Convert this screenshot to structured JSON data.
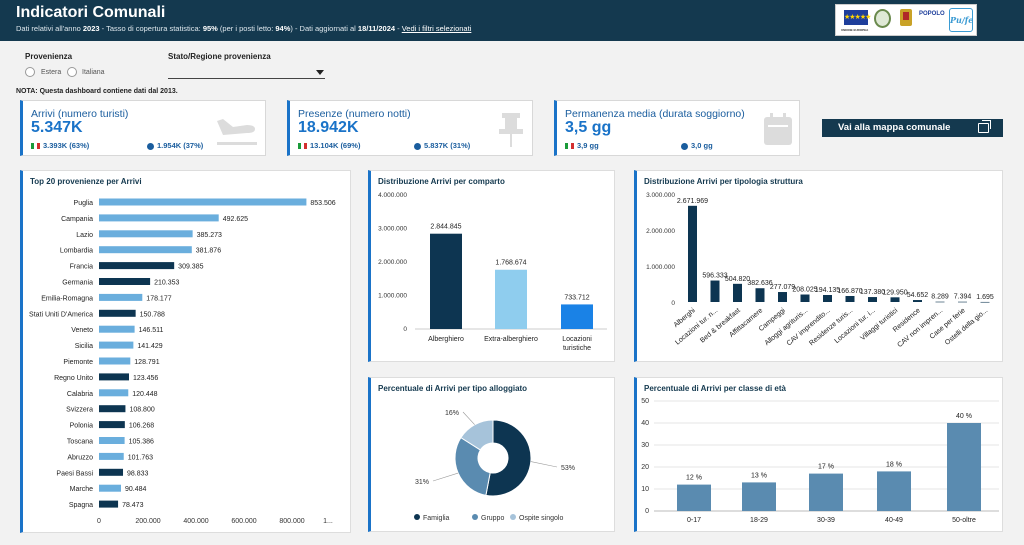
{
  "header": {
    "title": "Indicatori Comunali",
    "sub_prefix": "Dati relativi all'anno ",
    "year": "2023",
    "sub_mid": " - Tasso di copertura statistica: ",
    "coverage": "95%",
    "sub_mid2": " (per i posti letto: ",
    "coverage_beds": "94%",
    "sub_mid3": ") - Dati aggiornati al ",
    "date": "18/11/2024",
    "sub_sep": " - ",
    "filters_link": "Vedi i filtri selezionati"
  },
  "logos": {
    "eu_stars": "★★★★★",
    "eu_caption": "UNIONE EUROPEA",
    "popolo": "POPOLO",
    "pugliafesr": "Pu/fe"
  },
  "filters": {
    "provenienza_label": "Provenienza",
    "option_estera": "Estera",
    "option_italiana": "Italiana",
    "stato_label": "Stato/Regione provenienza"
  },
  "nota": "NOTA: Questa dashboard contiene dati dal 2013.",
  "kpis": [
    {
      "title": "Arrivi (numero turisti)",
      "value": "5.347K",
      "italian": "3.393K (63%)",
      "foreign": "1.954K (37%)",
      "icon": "plane-landing-icon"
    },
    {
      "title": "Presenze (numero notti)",
      "value": "18.942K",
      "italian": "13.104K (69%)",
      "foreign": "5.837K (31%)",
      "icon": "pin-icon"
    },
    {
      "title": "Permanenza media (durata soggiorno)",
      "value": "3,5 gg",
      "italian": "3,9 gg",
      "foreign": "3,0 gg",
      "icon": "calendar-icon"
    }
  ],
  "map_button": "Vai alla mappa comunale",
  "colors": {
    "dark": "#0d3551",
    "light": "#6aaedd",
    "pale": "#8fcdee",
    "blue": "#1a82e6",
    "mid": "#5a8bb0",
    "accent": "#1a73c8"
  },
  "panels": {
    "top20": "Top 20 provenienze per Arrivi",
    "comparto": "Distribuzione Arrivi per comparto",
    "tipologia": "Distribuzione Arrivi per tipologia struttura",
    "alloggiato": "Percentuale di Arrivi per tipo alloggiato",
    "eta": "Percentuale di Arrivi per classe di età"
  },
  "chart_data": [
    {
      "type": "bar",
      "orientation": "horizontal",
      "title": "Top 20 provenienze per Arrivi",
      "categories": [
        "Puglia",
        "Campania",
        "Lazio",
        "Lombardia",
        "Francia",
        "Germania",
        "Emilia-Romagna",
        "Stati Uniti D'America",
        "Veneto",
        "Sicilia",
        "Piemonte",
        "Regno Unito",
        "Calabria",
        "Svizzera",
        "Polonia",
        "Toscana",
        "Abruzzo",
        "Paesi Bassi",
        "Marche",
        "Spagna"
      ],
      "values": [
        853506,
        492625,
        385273,
        381876,
        309385,
        210353,
        178177,
        150788,
        146511,
        141429,
        128791,
        123456,
        120448,
        108800,
        106268,
        105386,
        101763,
        98833,
        90484,
        78473
      ],
      "labels": [
        "853.506",
        "492.625",
        "385.273",
        "381.876",
        "309.385",
        "210.353",
        "178.177",
        "150.788",
        "146.511",
        "141.429",
        "128.791",
        "123.456",
        "120.448",
        "108.800",
        "106.268",
        "105.386",
        "101.763",
        "98.833",
        "90.484",
        "78.473"
      ],
      "foreign": [
        false,
        false,
        false,
        false,
        true,
        true,
        false,
        true,
        false,
        false,
        false,
        true,
        false,
        true,
        true,
        false,
        false,
        true,
        false,
        true
      ],
      "xticks": [
        "0",
        "200.000",
        "400.000",
        "600.000",
        "800.000",
        "1..."
      ],
      "xlim": [
        0,
        1000000
      ]
    },
    {
      "type": "bar",
      "title": "Distribuzione Arrivi per comparto",
      "categories": [
        "Alberghiero",
        "Extra-alberghiero",
        "Locazioni turistiche"
      ],
      "category_lines": [
        [
          "Alberghiero"
        ],
        [
          "Extra-alberghiero"
        ],
        [
          "Locazioni",
          "turistiche"
        ]
      ],
      "values": [
        2844845,
        1768674,
        733712
      ],
      "labels": [
        "2.844.845",
        "1.768.674",
        "733.712"
      ],
      "yticks": [
        "4.000.000",
        "3.000.000",
        "2.000.000",
        "1.000.000",
        "0"
      ],
      "ylim": [
        0,
        4000000
      ]
    },
    {
      "type": "bar",
      "title": "Distribuzione Arrivi per tipologia struttura",
      "categories": [
        "Alberghi",
        "Locazioni tur. n...",
        "Bed & breakfast",
        "Affittacamere",
        "Campeggi",
        "Alloggi agrituris...",
        "CAV imprendito...",
        "Residenze turis...",
        "Locazioni tur. i...",
        "Villaggi turistici",
        "Residence",
        "CAV non impren...",
        "Case per ferie",
        "Ostelli della gio..."
      ],
      "values": [
        2671969,
        596333,
        504820,
        382636,
        277079,
        208025,
        194135,
        166870,
        137380,
        129950,
        54652,
        8289,
        7394,
        1695
      ],
      "labels": [
        "2.671.969",
        "596.333",
        "504.820",
        "382.636",
        "277.079",
        "208.025",
        "194.135",
        "166.870",
        "137.380",
        "129.950",
        "54.652",
        "8.289",
        "7.394",
        "1.695"
      ],
      "yticks": [
        "3.000.000",
        "2.000.000",
        "1.000.000",
        "0"
      ],
      "ylim": [
        0,
        3000000
      ]
    },
    {
      "type": "pie",
      "variant": "donut",
      "title": "Percentuale di Arrivi per tipo alloggiato",
      "slices": [
        {
          "name": "Famiglia",
          "value": 53,
          "label": "53%"
        },
        {
          "name": "Gruppo",
          "value": 31,
          "label": "31%"
        },
        {
          "name": "Ospite singolo",
          "value": 16,
          "label": "16%"
        }
      ],
      "legend": "bottom"
    },
    {
      "type": "bar",
      "title": "Percentuale di Arrivi per classe di età",
      "categories": [
        "0-17",
        "18-29",
        "30-39",
        "40-49",
        "50-oltre"
      ],
      "values": [
        12,
        13,
        17,
        18,
        40
      ],
      "labels": [
        "12 %",
        "13 %",
        "17 %",
        "18 %",
        "40 %"
      ],
      "yticks": [
        "50",
        "40",
        "30",
        "20",
        "10",
        "0"
      ],
      "ylim": [
        0,
        50
      ],
      "grid": true
    }
  ]
}
